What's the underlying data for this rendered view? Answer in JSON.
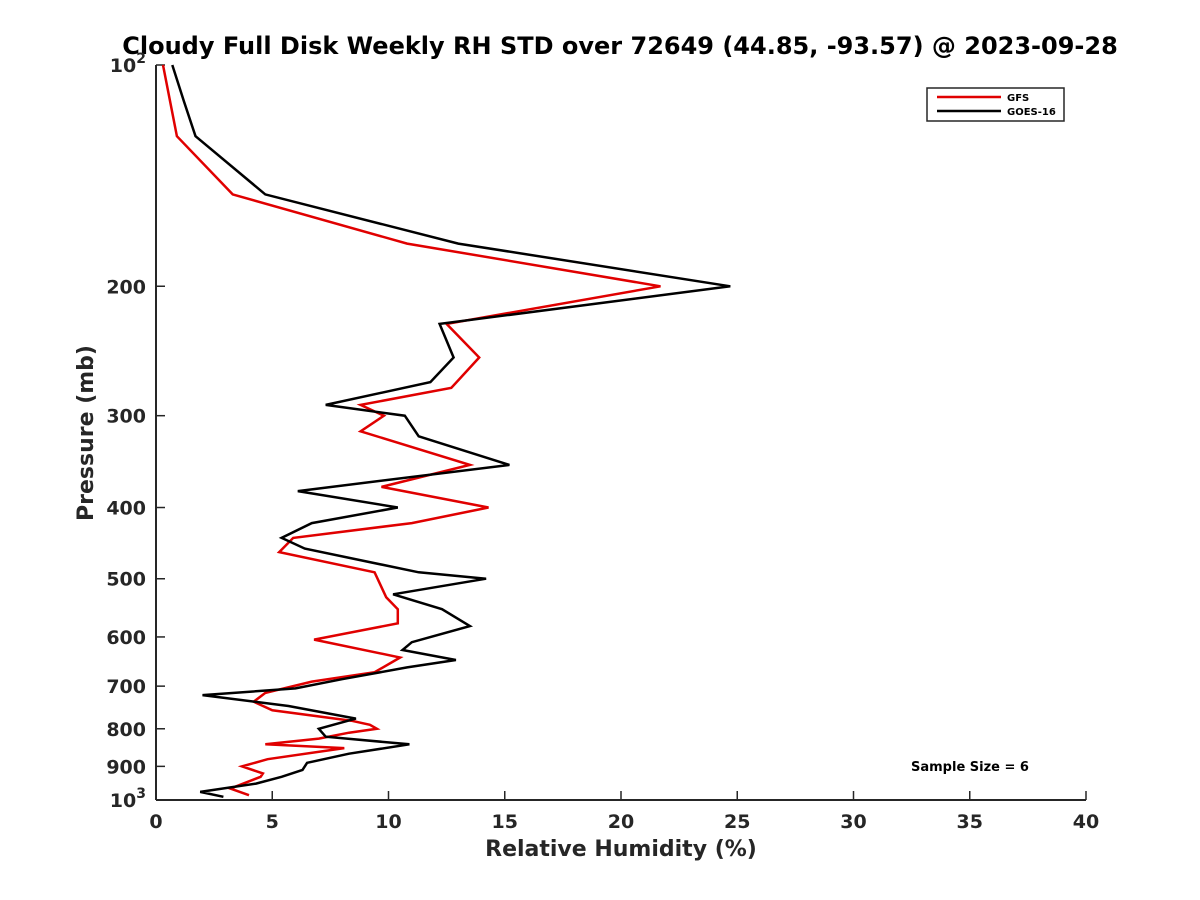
{
  "chart_data": {
    "type": "line",
    "title": "Cloudy Full Disk Weekly RH STD over 72649 (44.85, -93.57) @ 2023-09-28",
    "xlabel": "Relative Humidity (%)",
    "ylabel": "Pressure (mb)",
    "xlim": [
      0,
      40
    ],
    "ylim": [
      100,
      1000
    ],
    "y_scale": "log",
    "y_reversed": true,
    "grid": false,
    "legend_position": "top-right",
    "x_ticks": [
      "0",
      "5",
      "10",
      "15",
      "20",
      "25",
      "30",
      "35",
      "40"
    ],
    "y_ticks": [
      {
        "value": 100,
        "base": "10",
        "exp": "2"
      },
      {
        "value": 200,
        "label": "200"
      },
      {
        "value": 300,
        "label": "300"
      },
      {
        "value": 400,
        "label": "400"
      },
      {
        "value": 500,
        "label": "500"
      },
      {
        "value": 600,
        "label": "600"
      },
      {
        "value": 700,
        "label": "700"
      },
      {
        "value": 800,
        "label": "800"
      },
      {
        "value": 900,
        "label": "900"
      },
      {
        "value": 1000,
        "base": "10",
        "exp": "3"
      }
    ],
    "annotation": "Sample Size = 6",
    "series": [
      {
        "name": "GFS",
        "color": "#e00000",
        "points": [
          [
            0.3,
            100
          ],
          [
            0.9,
            125
          ],
          [
            3.3,
            150
          ],
          [
            10.8,
            175
          ],
          [
            21.7,
            200
          ],
          [
            12.5,
            225
          ],
          [
            13.9,
            250
          ],
          [
            12.7,
            275
          ],
          [
            8.8,
            290
          ],
          [
            9.8,
            300
          ],
          [
            8.8,
            315
          ],
          [
            13.5,
            350
          ],
          [
            9.7,
            375
          ],
          [
            14.3,
            400
          ],
          [
            11.0,
            420
          ],
          [
            5.9,
            440
          ],
          [
            5.3,
            460
          ],
          [
            9.4,
            490
          ],
          [
            9.9,
            530
          ],
          [
            10.4,
            550
          ],
          [
            10.4,
            575
          ],
          [
            6.8,
            605
          ],
          [
            10.5,
            640
          ],
          [
            9.4,
            670
          ],
          [
            6.7,
            690
          ],
          [
            4.7,
            715
          ],
          [
            4.2,
            735
          ],
          [
            5.0,
            755
          ],
          [
            8.4,
            780
          ],
          [
            9.2,
            790
          ],
          [
            9.5,
            800
          ],
          [
            8.3,
            810
          ],
          [
            7.0,
            825
          ],
          [
            4.7,
            840
          ],
          [
            8.1,
            850
          ],
          [
            4.8,
            880
          ],
          [
            3.7,
            900
          ],
          [
            4.6,
            920
          ],
          [
            4.5,
            930
          ],
          [
            3.2,
            965
          ],
          [
            4.0,
            985
          ]
        ]
      },
      {
        "name": "GOES-16",
        "color": "#000000",
        "points": [
          [
            0.7,
            100
          ],
          [
            1.2,
            112
          ],
          [
            1.7,
            125
          ],
          [
            4.7,
            150
          ],
          [
            13.0,
            175
          ],
          [
            24.7,
            200
          ],
          [
            12.2,
            225
          ],
          [
            12.8,
            250
          ],
          [
            11.8,
            270
          ],
          [
            7.3,
            290
          ],
          [
            10.7,
            300
          ],
          [
            11.3,
            320
          ],
          [
            15.2,
            350
          ],
          [
            6.1,
            380
          ],
          [
            10.4,
            400
          ],
          [
            6.7,
            420
          ],
          [
            5.4,
            440
          ],
          [
            6.4,
            455
          ],
          [
            11.3,
            490
          ],
          [
            14.2,
            500
          ],
          [
            10.2,
            525
          ],
          [
            12.3,
            550
          ],
          [
            13.5,
            580
          ],
          [
            11.0,
            610
          ],
          [
            10.6,
            625
          ],
          [
            12.9,
            645
          ],
          [
            10.8,
            660
          ],
          [
            8.0,
            685
          ],
          [
            6.0,
            705
          ],
          [
            2.0,
            720
          ],
          [
            5.7,
            745
          ],
          [
            8.6,
            775
          ],
          [
            7.0,
            800
          ],
          [
            7.3,
            820
          ],
          [
            10.9,
            840
          ],
          [
            8.3,
            865
          ],
          [
            6.5,
            890
          ],
          [
            6.3,
            910
          ],
          [
            5.4,
            930
          ],
          [
            4.3,
            950
          ],
          [
            1.9,
            975
          ],
          [
            2.9,
            990
          ]
        ]
      }
    ]
  }
}
